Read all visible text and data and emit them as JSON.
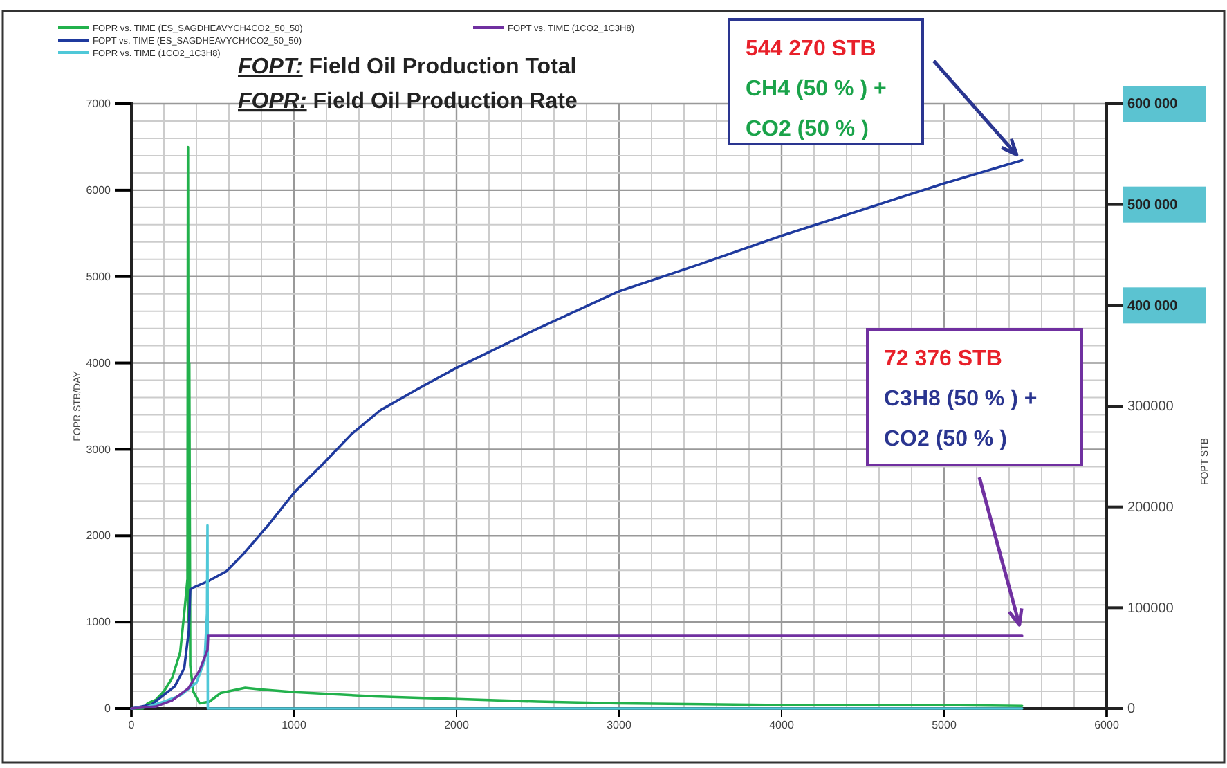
{
  "chart_data": {
    "type": "line",
    "title": "FOPT: Field Oil Production Total",
    "subtitle": "FOPR: Field Oil Production Rate",
    "ylabel": "FOPR   STB/DAY",
    "y2label": "FOPT   STB",
    "xlim": [
      0,
      6000
    ],
    "xticks": [
      0,
      1000,
      2000,
      3000,
      4000,
      5000,
      6000
    ],
    "ylim": [
      0,
      7000
    ],
    "yticks": [
      0,
      1000,
      2000,
      3000,
      4000,
      5000,
      6000,
      7000
    ],
    "y2lim": [
      0,
      600000
    ],
    "y2ticks": [
      0,
      100000,
      200000,
      300000,
      {
        "value": 400000,
        "label": "400 000"
      },
      {
        "value": 500000,
        "label": "500 000"
      },
      {
        "value": 600000,
        "label": "600 000"
      }
    ],
    "grid": true,
    "legend": "top left",
    "line_style": "solid",
    "marker": "none",
    "series": [
      {
        "name": "FOPR vs. TIME (ES_SAGDHEAVYCH4CO2_50_50)",
        "color": "#22b14c",
        "x": [
          0,
          70,
          100,
          150,
          200,
          250,
          300,
          330,
          345,
          348,
          352,
          356,
          362,
          380,
          420,
          480,
          550,
          700,
          800,
          1000,
          1500,
          2000,
          2500,
          3000,
          4000,
          5000,
          5480
        ],
        "values": [
          0,
          0,
          60,
          100,
          200,
          350,
          650,
          1200,
          1500,
          6500,
          1000,
          4000,
          500,
          200,
          60,
          80,
          180,
          240,
          220,
          190,
          140,
          110,
          80,
          60,
          40,
          40,
          30
        ]
      },
      {
        "name": "FOPT vs. TIME (ES_SAGDHEAVYCH4CO2_50_50)",
        "color": "#1f3a9e",
        "axis": "y2",
        "x": [
          0,
          124,
          267,
          325,
          353,
          362,
          382,
          468,
          583,
          698,
          842,
          1000,
          1187,
          1359,
          1532,
          1761,
          2000,
          2500,
          3000,
          3500,
          4000,
          4500,
          5000,
          5480
        ],
        "values": [
          0,
          4000,
          22000,
          40000,
          77000,
          118000,
          120000,
          126000,
          136000,
          155000,
          182000,
          214000,
          244000,
          273000,
          296000,
          317000,
          338000,
          377000,
          414000,
          441000,
          469000,
          495000,
          521000,
          544000
        ]
      },
      {
        "name": "FOPR vs. TIME (1CO2_1C3H8)",
        "color": "#4fc8d8",
        "x": [
          0,
          100,
          200,
          300,
          400,
          450,
          465,
          468,
          470,
          5480
        ],
        "values": [
          0,
          20,
          80,
          150,
          300,
          550,
          1100,
          2120,
          0,
          0
        ]
      },
      {
        "name": "FOPT vs. TIME (1CO2_1C3H8)",
        "color": "#7030a0",
        "axis": "y2",
        "x": [
          0,
          150,
          250,
          350,
          420,
          468,
          472,
          5480
        ],
        "values": [
          0,
          2000,
          8000,
          20000,
          38000,
          58000,
          72000,
          72000
        ]
      }
    ],
    "annotations": [
      "544 270 STB",
      "CH4 (50 % ) +",
      "CO2 (50 % )",
      "72 376 STB",
      "C3H8 (50 % ) +",
      "CO2 (50 % )"
    ]
  }
}
